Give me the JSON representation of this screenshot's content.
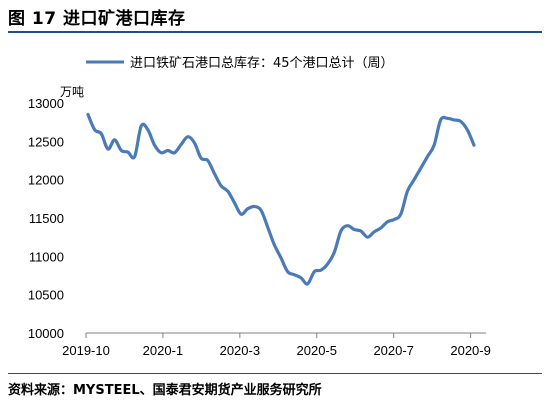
{
  "figure": {
    "title": "图 17 进口矿港口库存",
    "source": "资料来源：MYSTEEL、国泰君安期货产业服务研究所"
  },
  "chart_data": {
    "type": "line",
    "ylabel": "万吨",
    "ylim": [
      10000,
      13000
    ],
    "yticks": [
      "13000",
      "12500",
      "12000",
      "11500",
      "11000",
      "10500",
      "10000"
    ],
    "xtick_labels": [
      "2019-10",
      "2020-1",
      "2020-3",
      "2020-5",
      "2020-7",
      "2020-9"
    ],
    "legend_position": "top",
    "grid": false,
    "color": "#4a7ab8",
    "series": [
      {
        "name": "进口铁矿石港口总库存：45个港口总计（周）",
        "values": [
          12850,
          12650,
          12600,
          12400,
          12520,
          12380,
          12360,
          12300,
          12700,
          12650,
          12450,
          12350,
          12380,
          12350,
          12460,
          12560,
          12480,
          12280,
          12250,
          12080,
          11920,
          11850,
          11700,
          11550,
          11620,
          11650,
          11600,
          11380,
          11150,
          10980,
          10800,
          10760,
          10720,
          10640,
          10800,
          10820,
          10900,
          11050,
          11330,
          11400,
          11350,
          11330,
          11250,
          11320,
          11370,
          11450,
          11480,
          11550,
          11850,
          12000,
          12150,
          12300,
          12450,
          12780,
          12800,
          12780,
          12760,
          12650,
          12450
        ]
      }
    ]
  }
}
